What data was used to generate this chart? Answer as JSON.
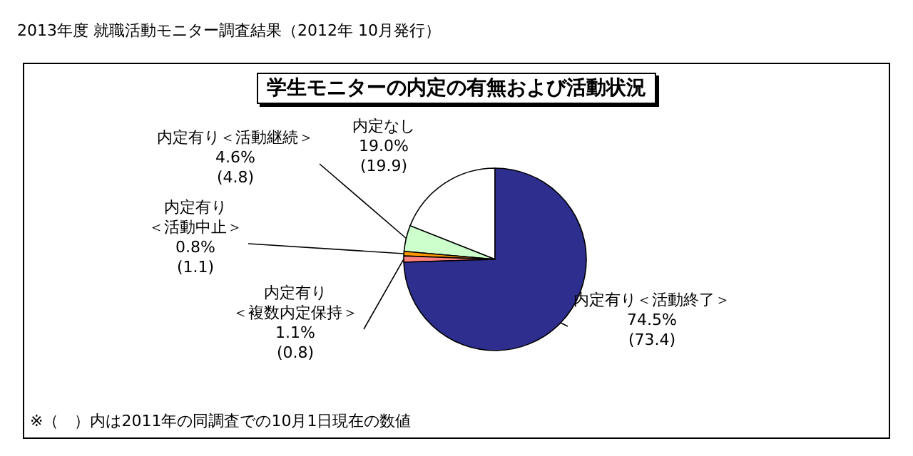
{
  "chart_data": {
    "type": "pie",
    "title": "学生モニターの内定の有無および活動状況",
    "subtitle": "2013年度 就職活動モニター調査結果（2012年 10月発行）",
    "categories": [
      "内定なし",
      "内定有り＜活動継続＞",
      "内定有り＜活動中止＞",
      "内定有り＜複数内定保持＞",
      "内定有り＜活動終了＞"
    ],
    "values": [
      19.0,
      4.6,
      0.8,
      1.1,
      74.5
    ],
    "colors": [
      "#ffffff",
      "#ccffcc",
      "#ff9900",
      "#ff8080",
      "#2e2e8f"
    ],
    "value_labels": [
      "19.0%\n(19.9)",
      "4.6%\n(4.8)",
      "0.8%\n(1.1)",
      "1.1%\n(0.8)",
      "74.5%\n(73.4)"
    ],
    "annotations": [
      "※（　）内は2011年の同調査での10月1日現在の数値"
    ]
  }
}
